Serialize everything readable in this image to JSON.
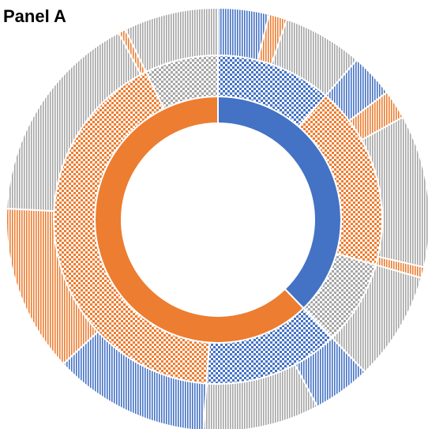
{
  "chart_data": {
    "type": "sunburst",
    "title": "Panel A",
    "children": [
      {
        "value": 136,
        "color": "#4472c4",
        "children": [
          {
            "value": 41,
            "color": "#4472c4",
            "children": [
              {
                "value": 14,
                "color": "#4472c4"
              },
              {
                "value": 5,
                "color": "#ed7d31"
              },
              {
                "value": 22,
                "color": "#a5a5a5"
              }
            ]
          },
          {
            "value": 65,
            "color": "#ed7d31",
            "children": [
              {
                "value": 12,
                "color": "#4472c4"
              },
              {
                "value": 8,
                "color": "#ed7d31"
              },
              {
                "value": 42,
                "color": "#a5a5a5"
              },
              {
                "value": 3,
                "color": "#ed7d31"
              }
            ]
          },
          {
            "value": 30,
            "color": "#a5a5a5",
            "children": [
              {
                "value": 30,
                "color": "#a5a5a5"
              }
            ]
          }
        ]
      },
      {
        "value": 224,
        "color": "#ed7d31",
        "children": [
          {
            "value": 48,
            "color": "#4472c4",
            "children": [
              {
                "value": 16,
                "color": "#4472c4"
              },
              {
                "value": 32,
                "color": "#a5a5a5"
              }
            ]
          },
          {
            "value": 150,
            "color": "#ed7d31",
            "children": [
              {
                "value": 43,
                "color": "#4472c4"
              },
              {
                "value": 46,
                "color": "#ed7d31"
              },
              {
                "value": 59,
                "color": "#a5a5a5"
              },
              {
                "value": 2,
                "color": "#ed7d31"
              }
            ]
          },
          {
            "value": 26,
            "color": "#a5a5a5",
            "children": [
              {
                "value": 26,
                "color": "#a5a5a5"
              }
            ]
          }
        ]
      }
    ]
  }
}
